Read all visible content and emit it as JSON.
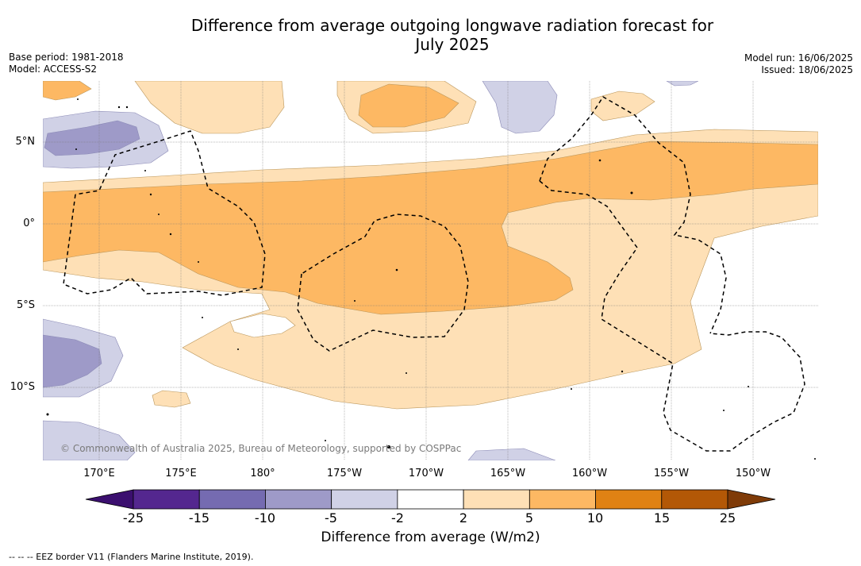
{
  "header": {
    "title_line1": "Difference from average outgoing longwave radiation forecast for",
    "title_line2": "July 2025",
    "base_period": "Base period: 1981-2018",
    "model": "Model: ACCESS-S2",
    "model_run": "Model run: 16/06/2025",
    "issued": "Issued: 18/06/2025"
  },
  "map": {
    "lat_labels": [
      "5°N",
      "0°",
      "5°S",
      "10°S"
    ],
    "lon_labels": [
      "170°E",
      "175°E",
      "180°",
      "175°W",
      "170°W",
      "165°W",
      "160°W",
      "155°W",
      "150°W"
    ],
    "copyright": "© Commonwealth of Australia 2025, Bureau of Meteorology, supported by COSPPac"
  },
  "colorbar": {
    "ticks": [
      "-25",
      "-15",
      "-10",
      "-5",
      "-2",
      "2",
      "5",
      "10",
      "15",
      "25"
    ],
    "label": "Difference from average (W/m2)",
    "colors": [
      "#3b0f6f",
      "#54278f",
      "#756bb1",
      "#9e9ac8",
      "#d0d1e6",
      "#ffffff",
      "#fee0b6",
      "#fdb863",
      "#e08214",
      "#b35806",
      "#7f3b08"
    ]
  },
  "footnote": "--  --  -- EEZ border V11 (Flanders Marine Institute, 2019)."
}
